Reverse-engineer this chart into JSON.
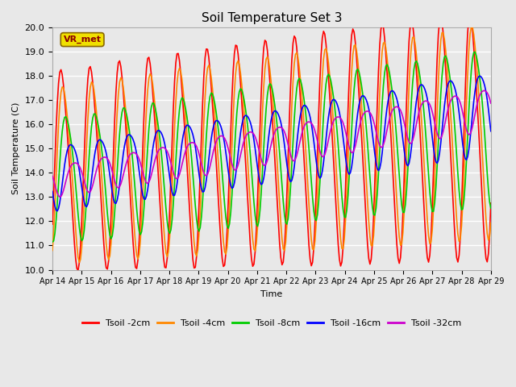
{
  "title": "Soil Temperature Set 3",
  "xlabel": "Time",
  "ylabel": "Soil Temperature (C)",
  "ylim": [
    10.0,
    20.0
  ],
  "yticks": [
    10.0,
    11.0,
    12.0,
    13.0,
    14.0,
    15.0,
    16.0,
    17.0,
    18.0,
    19.0,
    20.0
  ],
  "xtick_labels": [
    "Apr 14",
    "Apr 15",
    "Apr 16",
    "Apr 17",
    "Apr 18",
    "Apr 19",
    "Apr 20",
    "Apr 21",
    "Apr 22",
    "Apr 23",
    "Apr 24",
    "Apr 25",
    "Apr 26",
    "Apr 27",
    "Apr 28",
    "Apr 29"
  ],
  "colors": {
    "Tsoil -2cm": "#ff0000",
    "Tsoil -4cm": "#ff8800",
    "Tsoil -8cm": "#00cc00",
    "Tsoil -16cm": "#0000ff",
    "Tsoil -32cm": "#cc00cc"
  },
  "legend_label_box": "VR_met",
  "background_color": "#e8e8e8",
  "plot_bg_color": "#e8e8e8",
  "grid_color": "#ffffff"
}
